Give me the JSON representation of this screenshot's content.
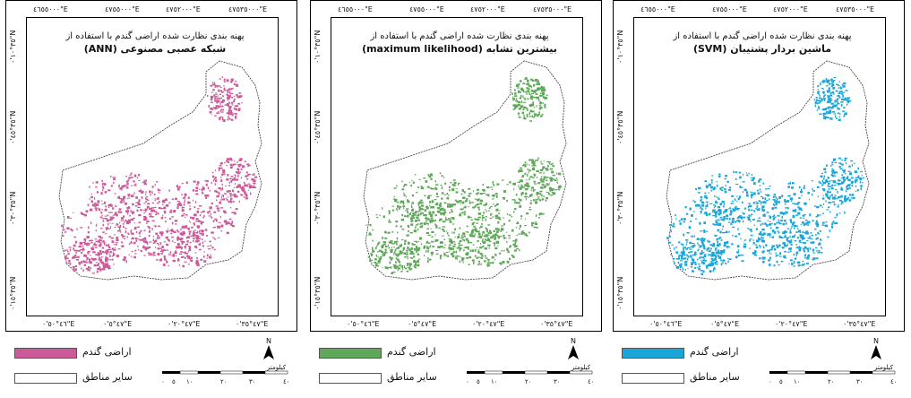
{
  "grid": {
    "top_ticks": [
      "٤٦٥٥٠٠٠\"E",
      "٤٧٥٥٠٠٠\"E",
      "٤٧٥٢٠٠٠\"E",
      "٤٧٥٣٥٠٠٠\"E"
    ],
    "bottom_ticks": [
      "٤٦°٥٠'٠\"E",
      "٤٧°٥'٠\"E",
      "٤٧°٢٠'٠\"E",
      "٤٧°٣٥'٠\"E"
    ],
    "left_ticks": [
      "٣٥°١٠'٠\"N",
      "N",
      "٣٥°٥٠'٠\"N",
      "N",
      "٣٥°٤٥'٠\"N",
      "N",
      "٣٥°٣٠'٠\"N",
      "N",
      "٣٥°١٥'٠\"N"
    ],
    "right_ticks": [
      "N",
      "٣٨°٥٠'٠\"N",
      "N",
      "٣٨°٥٥'٠\"N",
      "N",
      "٣٨°٤٥'٠\"N",
      "N",
      "٣٨°٣٥'٠\"N",
      "N"
    ]
  },
  "panels": [
    {
      "title_line1": "پهنه بندی نظارت شده اراضی گندم با استفاده از",
      "title_line2": "شبکه عصبی مصنوعی (ANN)",
      "color": "#cc5a9a",
      "legend_wheat": "اراضی گندم",
      "legend_other": "سایر مناطق"
    },
    {
      "title_line1": "پهنه بندی نظارت شده اراضی گندم با استفاده از",
      "title_line2": "بیشترین تشابه (maximum likelihood)",
      "color": "#5fa85a",
      "legend_wheat": "اراضی گندم",
      "legend_other": "سایر مناطق"
    },
    {
      "title_line1": "پهنه بندی نظارت شده اراضی گندم با استفاده از",
      "title_line2": "ماشین بردار پشتیبان (SVM)",
      "color": "#1aa6d8",
      "legend_wheat": "اراضی گندم",
      "legend_other": "سایر مناطق"
    }
  ],
  "north_label": "N",
  "scale": {
    "unit": "کیلومتر",
    "ticks": [
      "٠",
      "٥",
      "١٠",
      "٢٠",
      "٣٠",
      "٤٠"
    ]
  }
}
